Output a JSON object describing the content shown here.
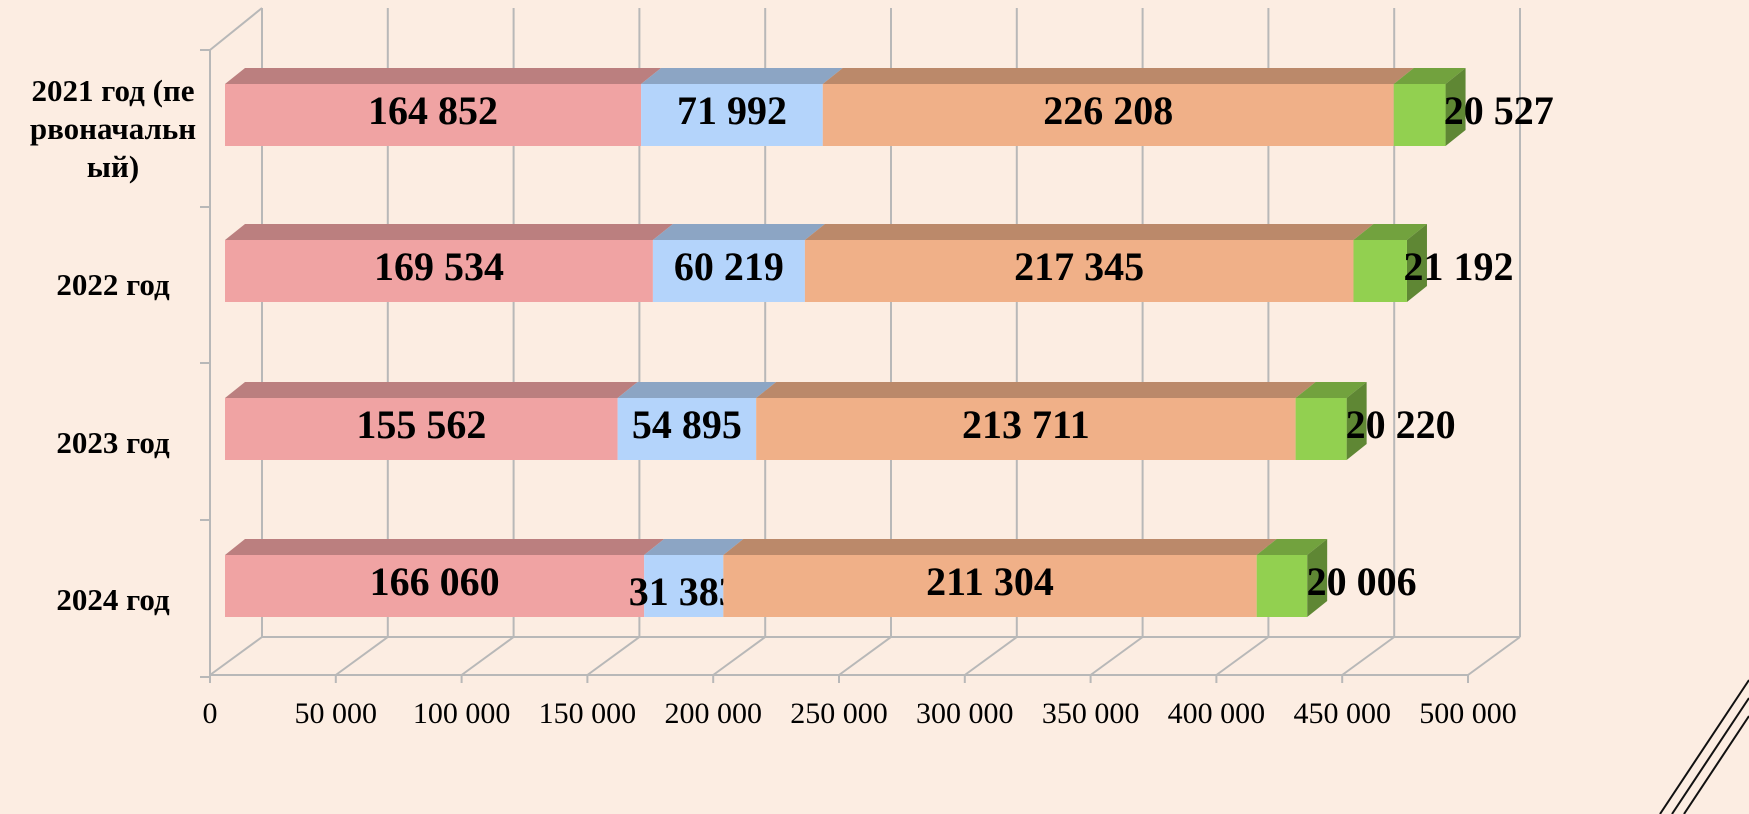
{
  "chart_data": {
    "type": "bar3d_stacked_horizontal",
    "categories": [
      "2021 год (первоначальный)",
      "2022 год",
      "2023 год",
      "2024 год"
    ],
    "series": [
      {
        "color": "#f0a3a3",
        "values": [
          164852,
          169534,
          155562,
          166060
        ],
        "value_labels": [
          "164 852",
          "169 534",
          "155 562",
          "166 060"
        ]
      },
      {
        "color": "#b4d4fb",
        "values": [
          71992,
          60219,
          54895,
          31383
        ],
        "value_labels": [
          "71 992",
          "60 219",
          "54 895",
          "31 383"
        ]
      },
      {
        "color": "#f0b088",
        "values": [
          226208,
          217345,
          213711,
          211304
        ],
        "value_labels": [
          "226 208",
          "217 345",
          "213 711",
          "211 304"
        ]
      },
      {
        "color": "#92d050",
        "values": [
          20527,
          21192,
          20220,
          20006
        ],
        "value_labels": [
          "20 527",
          "21 192",
          "20 220",
          "20 006"
        ]
      }
    ],
    "xlim": [
      0,
      500000
    ],
    "xticks": [
      0,
      {
        "value": 50000,
        "label": "50 000"
      },
      {
        "value": 100000,
        "label": "100 000"
      },
      {
        "value": 150000,
        "label": "150 000"
      },
      {
        "value": 200000,
        "label": "200 000"
      },
      {
        "value": 250000,
        "label": "250 000"
      },
      {
        "value": 300000,
        "label": "300 000"
      },
      {
        "value": 350000,
        "label": "350 000"
      },
      {
        "value": 400000,
        "label": "400 000"
      },
      {
        "value": 450000,
        "label": "450 000"
      },
      {
        "value": 500000,
        "label": "500 000"
      }
    ],
    "grid": true
  }
}
